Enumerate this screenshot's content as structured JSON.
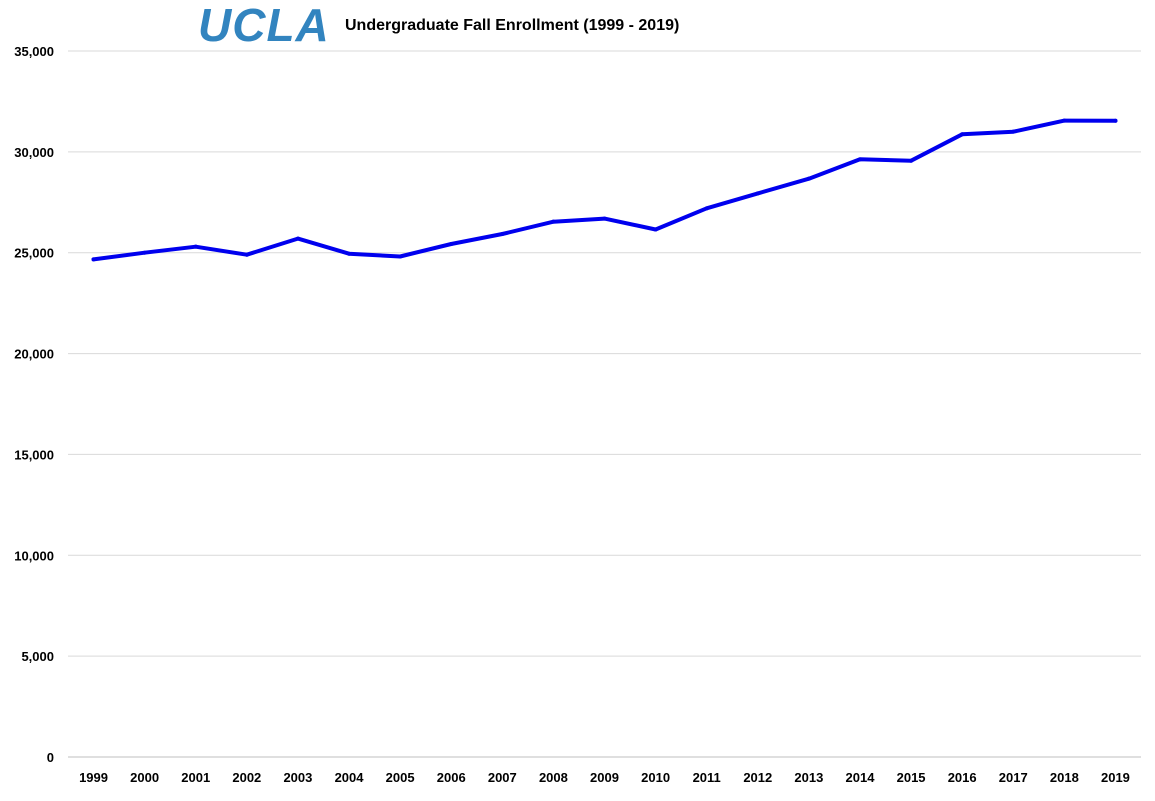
{
  "logo_text": "UCLA",
  "chart_data": {
    "type": "line",
    "title": "Undergraduate Fall Enrollment (1999 - 2019)",
    "xlabel": "",
    "ylabel": "",
    "categories": [
      "1999",
      "2000",
      "2001",
      "2002",
      "2003",
      "2004",
      "2005",
      "2006",
      "2007",
      "2008",
      "2009",
      "2010",
      "2011",
      "2012",
      "2013",
      "2014",
      "2015",
      "2016",
      "2017",
      "2018",
      "2019"
    ],
    "series": [
      {
        "values": [
          24670,
          25000,
          25300,
          24900,
          25700,
          24950,
          24810,
          25430,
          25930,
          26540,
          26690,
          26150,
          27200,
          27940,
          28670,
          29630,
          29560,
          30870,
          31000,
          31550,
          31540
        ],
        "color": "#0000EE"
      }
    ],
    "ylim": [
      0,
      35000
    ],
    "y_ticks": [
      0,
      5000,
      10000,
      15000,
      20000,
      25000,
      30000,
      35000
    ],
    "y_tick_labels": [
      "0",
      "5,000",
      "10,000",
      "15,000",
      "20,000",
      "25,000",
      "30,000",
      "35,000"
    ],
    "grid": true,
    "legend": "none"
  }
}
